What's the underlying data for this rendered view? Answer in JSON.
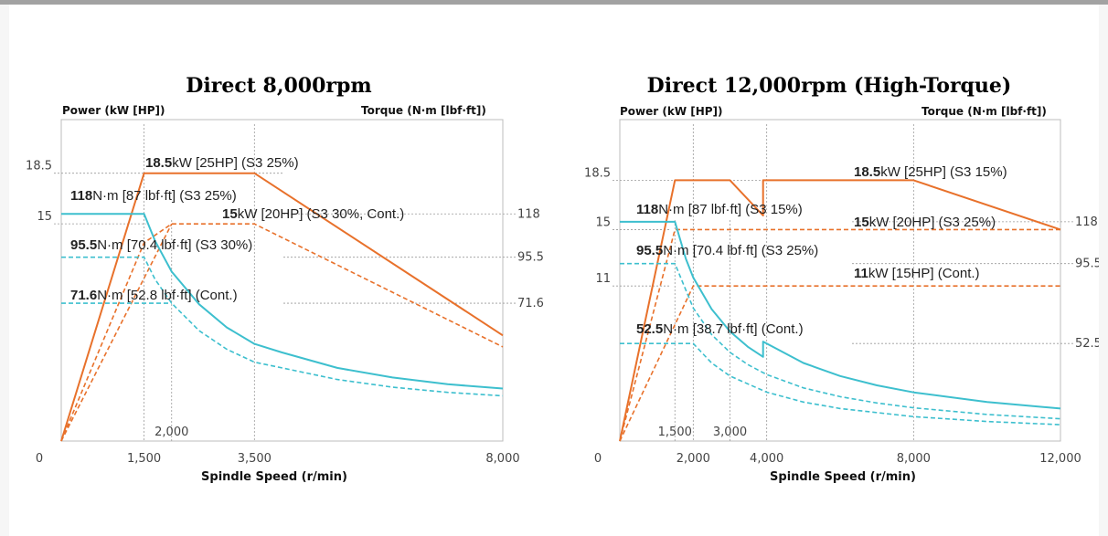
{
  "chart_data": [
    {
      "type": "line",
      "title": "Direct 8,000rpm",
      "left_axis_label": "Power (kW [HP])",
      "right_axis_label": "Torque (N·m [lbf·ft])",
      "xlabel": "Spindle Speed (r/min)",
      "xlim": [
        0,
        8000
      ],
      "power_ylim": [
        0,
        22.2
      ],
      "torque_ylim": [
        0,
        167
      ],
      "x_ticks": [
        "0",
        "1,500",
        "3,500",
        "8,000"
      ],
      "x_ticks_bottom": [
        "2,000"
      ],
      "power_ticks": [
        "18.5",
        "15"
      ],
      "torque_ticks": [
        "118",
        "95.5",
        "71.6"
      ],
      "colors": {
        "power": "#e8712b",
        "torque": "#3dbfce"
      },
      "series": [
        {
          "name": "18.5kW [25HP] (S3 25%)",
          "axis": "power",
          "style": "solid",
          "x": [
            0,
            1500,
            3500,
            8000
          ],
          "y": [
            0,
            18.5,
            18.5,
            7.3
          ]
        },
        {
          "name": "15kW [20HP] (S3 30%, Cont.)",
          "axis": "power",
          "style": "dashed",
          "x": [
            0,
            1500,
            2000,
            3500,
            8000
          ],
          "y": [
            0,
            13.7,
            15,
            15,
            6.5
          ]
        },
        {
          "name": "15kW",
          "axis": "power",
          "style": "dashed",
          "x": [
            0,
            2000
          ],
          "y": [
            0,
            15
          ]
        },
        {
          "name": "118N·m [87 lbf·ft] (S3 25%)",
          "axis": "torque",
          "style": "solid",
          "x": [
            0,
            1500,
            1700,
            2000,
            2500,
            3000,
            3500,
            4000,
            5000,
            6000,
            7000,
            8000
          ],
          "y": [
            118,
            118,
            104,
            88,
            71,
            59,
            50.5,
            46,
            38,
            33,
            29.5,
            27.3
          ]
        },
        {
          "name": "95.5N·m [70.4 lbf·ft] (S3 30%)",
          "axis": "torque",
          "style": "dashed",
          "x": [
            0,
            1500,
            1700,
            2000,
            2500,
            3000,
            3500,
            4000,
            5000,
            6000,
            7000,
            8000
          ],
          "y": [
            95.5,
            95.5,
            84,
            71.6,
            57.3,
            47.7,
            41,
            38,
            32,
            28,
            25.3,
            23.5
          ]
        },
        {
          "name": "71.6N·m [52.8 lbf·ft] (Cont.)",
          "axis": "torque",
          "style": "dashed",
          "x": [
            0,
            2000
          ],
          "y": [
            71.6,
            71.6
          ]
        }
      ],
      "annotations": [
        {
          "bold": "18.5",
          "text": "kW [25HP] (S3 25%)"
        },
        {
          "bold": "118",
          "text": "N·m [87 lbf·ft] (S3 25%)"
        },
        {
          "bold": "15",
          "text": "kW [20HP] (S3 30%, Cont.)"
        },
        {
          "bold": "95.5",
          "text": "N·m [70.4 lbf·ft] (S3 30%)"
        },
        {
          "bold": "71.6",
          "text": "N·m [52.8 lbf·ft] (Cont.)"
        }
      ]
    },
    {
      "type": "line",
      "title": "Direct 12,000rpm (High-Torque)",
      "left_axis_label": "Power (kW [HP])",
      "right_axis_label": "Torque (N·m [lbf·ft])",
      "xlabel": "Spindle Speed (r/min)",
      "xlim": [
        0,
        12000
      ],
      "power_ylim": [
        0,
        22.8
      ],
      "torque_ylim": [
        0,
        173
      ],
      "x_ticks": [
        "0",
        "2,000",
        "4,000",
        "8,000",
        "12,000"
      ],
      "x_ticks_bottom": [
        "1,500",
        "3,000"
      ],
      "power_ticks": [
        "18.5",
        "15",
        "11"
      ],
      "torque_ticks": [
        "118",
        "95.5",
        "52.5"
      ],
      "colors": {
        "power": "#e8712b",
        "torque": "#3dbfce"
      },
      "series": [
        {
          "name": "18.5kW [25HP] (S3 15%)",
          "axis": "power",
          "style": "solid",
          "x": [
            0,
            1500,
            3000,
            3900,
            3900,
            8000,
            12000
          ],
          "y": [
            0,
            18.5,
            18.5,
            16.0,
            18.5,
            18.5,
            15
          ]
        },
        {
          "name": "15kW [20HP] (S3 25%)",
          "axis": "power",
          "style": "dashed",
          "x": [
            0,
            1500,
            12000
          ],
          "y": [
            0,
            15,
            15
          ]
        },
        {
          "name": "11kW [15HP] (Cont.)",
          "axis": "power",
          "style": "dashed",
          "x": [
            0,
            2000,
            12000
          ],
          "y": [
            0,
            11,
            11
          ]
        },
        {
          "name": "118N·m [87 lbf·ft] (S3 15%)",
          "axis": "torque",
          "style": "solid",
          "x": [
            0,
            1500,
            1800,
            2000,
            2500,
            3000,
            3500,
            3900,
            3900,
            5000,
            6000,
            7000,
            8000,
            10000,
            12000
          ],
          "y": [
            118,
            118,
            98,
            88,
            71,
            59,
            50.5,
            45.3,
            53.5,
            42,
            35,
            30,
            26.2,
            21,
            17.5
          ]
        },
        {
          "name": "95.5N·m [70.4 lbf·ft] (S3 25%)",
          "axis": "torque",
          "style": "dashed",
          "x": [
            0,
            1500,
            2000,
            2500,
            3000,
            3500,
            4000,
            5000,
            6000,
            7000,
            8000,
            10000,
            12000
          ],
          "y": [
            95.5,
            95.5,
            71.6,
            57.3,
            47.7,
            41,
            35.8,
            28.6,
            23.9,
            20.5,
            17.9,
            14.3,
            12
          ]
        },
        {
          "name": "52.5N·m [38.7 lbf·ft] (Cont.)",
          "axis": "torque",
          "style": "dashed",
          "x": [
            0,
            2000,
            2500,
            3000,
            4000,
            5000,
            6000,
            8000,
            10000,
            12000
          ],
          "y": [
            52.5,
            52.5,
            42,
            35,
            26.3,
            21,
            17.5,
            13.1,
            10.5,
            8.8
          ]
        }
      ],
      "annotations": [
        {
          "bold": "18.5",
          "text": "kW [25HP] (S3 15%)"
        },
        {
          "bold": "118",
          "text": "N·m [87 lbf·ft] (S3 15%)"
        },
        {
          "bold": "15",
          "text": "kW [20HP] (S3 25%)"
        },
        {
          "bold": "95.5",
          "text": "N·m [70.4 lbf·ft] (S3 25%)"
        },
        {
          "bold": "11",
          "text": "kW [15HP] (Cont.)"
        },
        {
          "bold": "52.5",
          "text": "N·m [38.7 lbf·ft] (Cont.)"
        }
      ]
    }
  ]
}
